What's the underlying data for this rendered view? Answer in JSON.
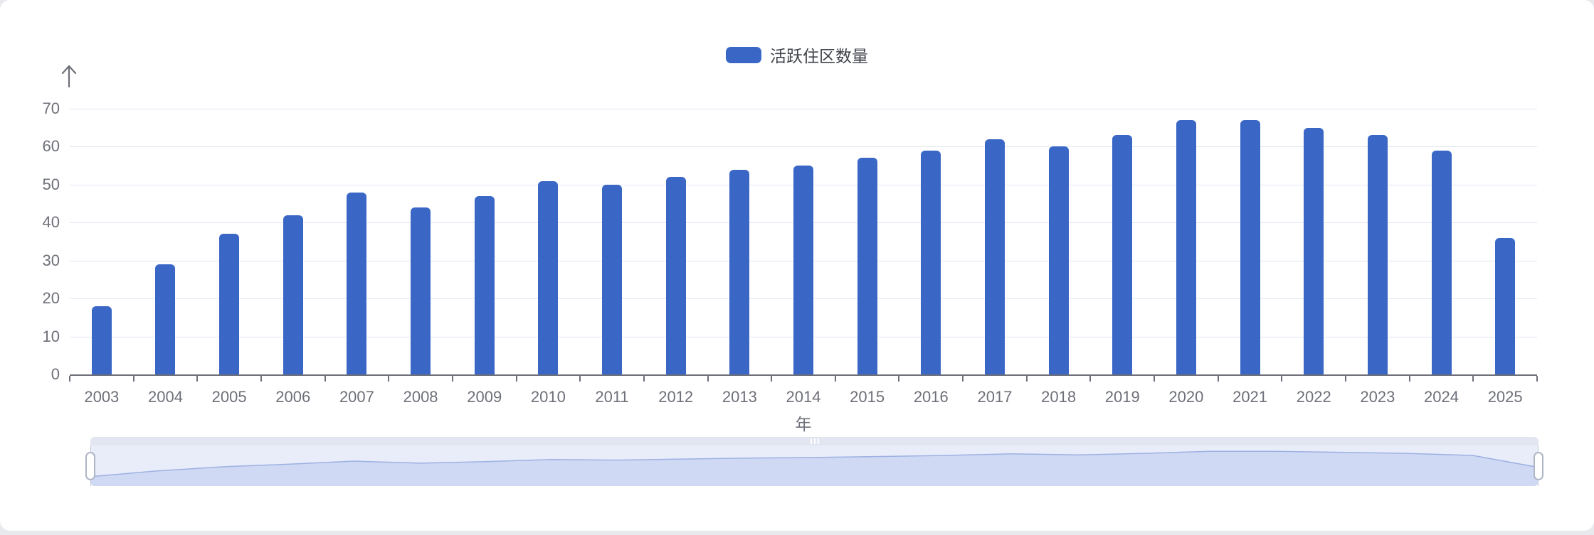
{
  "page": {
    "background_color": "#e7e9ec",
    "card_background_color": "#ffffff"
  },
  "legend": {
    "label": "活跃住区数量",
    "swatch_color": "#3A67C6",
    "position": "top-center"
  },
  "chart_data": {
    "type": "bar",
    "title": "",
    "series_name": "活跃住区数量",
    "categories": [
      "2003",
      "2004",
      "2005",
      "2006",
      "2007",
      "2008",
      "2009",
      "2010",
      "2011",
      "2012",
      "2013",
      "2014",
      "2015",
      "2016",
      "2017",
      "2018",
      "2019",
      "2020",
      "2021",
      "2022",
      "2023",
      "2024",
      "2025"
    ],
    "values": [
      18,
      29,
      37,
      42,
      48,
      44,
      47,
      51,
      50,
      52,
      54,
      55,
      57,
      59,
      62,
      60,
      63,
      67,
      67,
      65,
      63,
      59,
      36
    ],
    "xlabel": "年",
    "ylabel": "",
    "ylim": [
      0,
      70
    ],
    "yticks": [
      0,
      10,
      20,
      30,
      40,
      50,
      60,
      70
    ],
    "grid": true,
    "legend_position": "top-center",
    "bar_color": "#3A67C6",
    "gridline_color": "#E0E6F1",
    "axis_line_color": "#6E7079",
    "axis_label_color": "#6E7079"
  },
  "datazoom": {
    "start_percent": 0,
    "end_percent": 100,
    "grip_icon": "drag-grip",
    "track_color": "#e2e6f0",
    "background_color": "#e9edfa",
    "shadow_fill_color": "#cfd9f3",
    "shadow_line_color": "#9db1e2"
  }
}
